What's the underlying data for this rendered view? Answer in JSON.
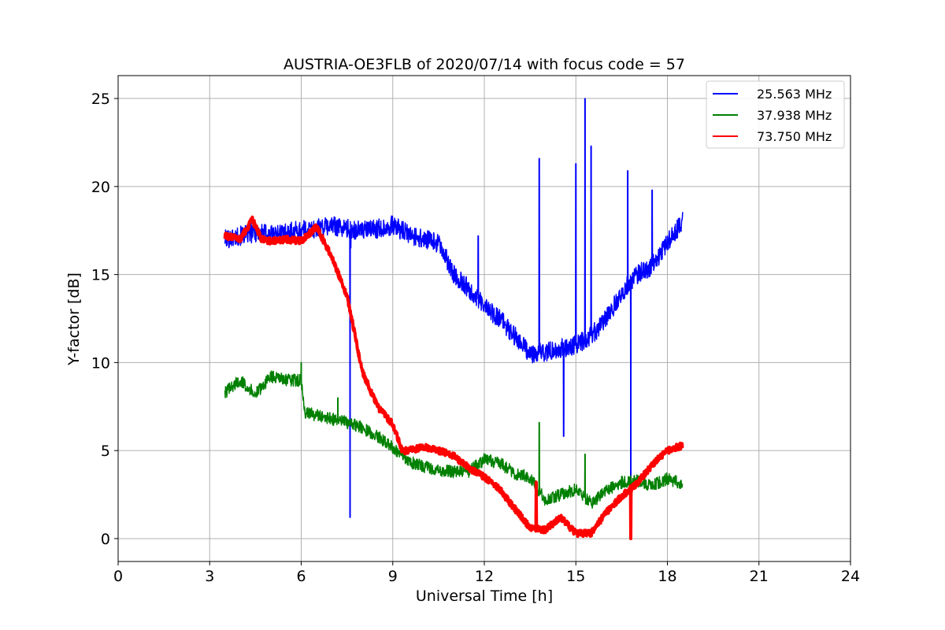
{
  "chart_data": {
    "type": "line",
    "title": "AUSTRIA-OE3FLB of 2020/07/14 with focus code = 57",
    "xlabel": "Universal Time [h]",
    "ylabel": "Y-factor [dB]",
    "xlim": [
      0,
      24
    ],
    "ylim": [
      -1.3,
      26.3
    ],
    "xticks": [
      0,
      3,
      6,
      9,
      12,
      15,
      18,
      21,
      24
    ],
    "yticks": [
      0,
      5,
      10,
      15,
      20,
      25
    ],
    "xtick_labels": [
      "0",
      "3",
      "6",
      "9",
      "12",
      "15",
      "18",
      "21",
      "24"
    ],
    "ytick_labels": [
      "0",
      "5",
      "10",
      "15",
      "20",
      "25"
    ],
    "grid": true,
    "legend_position": "top-right",
    "series": [
      {
        "name": "25.563 MHz",
        "color": "#0000ff",
        "noise": 0.55,
        "x": [
          3.5,
          4.0,
          4.5,
          5.0,
          5.5,
          6.0,
          6.5,
          7.0,
          7.5,
          8.0,
          8.5,
          9.0,
          9.5,
          10.0,
          10.5,
          11.0,
          11.5,
          12.0,
          12.5,
          13.0,
          13.5,
          14.0,
          14.5,
          15.0,
          15.5,
          16.0,
          16.5,
          17.0,
          17.5,
          18.0,
          18.5
        ],
        "y": [
          17.0,
          17.2,
          17.4,
          17.3,
          17.4,
          17.5,
          17.6,
          17.8,
          17.6,
          17.5,
          17.6,
          17.8,
          17.3,
          17.0,
          16.8,
          15.0,
          14.2,
          13.2,
          12.5,
          11.5,
          10.5,
          10.6,
          10.8,
          11.0,
          11.5,
          12.5,
          14.0,
          15.0,
          15.5,
          16.8,
          18.0
        ],
        "spikes": [
          [
            7.6,
            1.2
          ],
          [
            7.62,
            16.5
          ],
          [
            11.8,
            17.2
          ],
          [
            13.8,
            21.6
          ],
          [
            14.6,
            5.8
          ],
          [
            15.0,
            21.3
          ],
          [
            15.3,
            25.0
          ],
          [
            15.5,
            22.3
          ],
          [
            16.7,
            20.9
          ],
          [
            16.8,
            0.0
          ],
          [
            17.5,
            19.8
          ]
        ]
      },
      {
        "name": "37.938 MHz",
        "color": "#008000",
        "noise": 0.35,
        "x": [
          3.5,
          4.0,
          4.5,
          5.0,
          5.5,
          6.0,
          6.1,
          6.5,
          7.0,
          7.5,
          8.0,
          8.5,
          9.0,
          9.5,
          10.0,
          10.5,
          11.0,
          11.5,
          12.0,
          12.5,
          13.0,
          13.5,
          14.0,
          14.5,
          15.0,
          15.5,
          16.0,
          16.5,
          17.0,
          17.5,
          18.0,
          18.5
        ],
        "y": [
          8.3,
          9.0,
          8.2,
          9.2,
          9.0,
          9.0,
          7.2,
          7.0,
          6.8,
          6.6,
          6.3,
          5.8,
          5.2,
          4.4,
          4.1,
          3.9,
          3.8,
          3.8,
          4.5,
          4.3,
          3.7,
          3.5,
          2.2,
          2.5,
          2.8,
          2.0,
          2.7,
          3.2,
          3.3,
          3.0,
          3.4,
          3.1
        ],
        "spikes": [
          [
            6.0,
            10.0
          ],
          [
            7.2,
            8.0
          ],
          [
            13.8,
            6.6
          ],
          [
            15.3,
            4.8
          ]
        ]
      },
      {
        "name": "73.750 MHz",
        "color": "#ff0000",
        "noise": 0.18,
        "x": [
          3.5,
          4.0,
          4.4,
          4.7,
          5.0,
          5.5,
          6.0,
          6.5,
          7.0,
          7.5,
          8.0,
          8.5,
          9.0,
          9.3,
          9.5,
          10.0,
          10.5,
          11.0,
          11.5,
          12.0,
          12.5,
          13.0,
          13.5,
          14.0,
          14.5,
          15.0,
          15.5,
          16.0,
          16.5,
          17.0,
          17.5,
          18.0,
          18.5
        ],
        "y": [
          17.2,
          17.0,
          18.1,
          17.0,
          16.9,
          17.0,
          16.9,
          17.7,
          16.0,
          13.8,
          9.5,
          7.5,
          6.5,
          5.0,
          5.0,
          5.2,
          5.0,
          4.7,
          4.0,
          3.5,
          2.8,
          1.7,
          0.6,
          0.5,
          1.2,
          0.3,
          0.3,
          1.5,
          2.4,
          3.1,
          4.2,
          5.0,
          5.3
        ],
        "spikes": [
          [
            13.7,
            3.2
          ],
          [
            16.8,
            0.0
          ]
        ]
      }
    ]
  }
}
